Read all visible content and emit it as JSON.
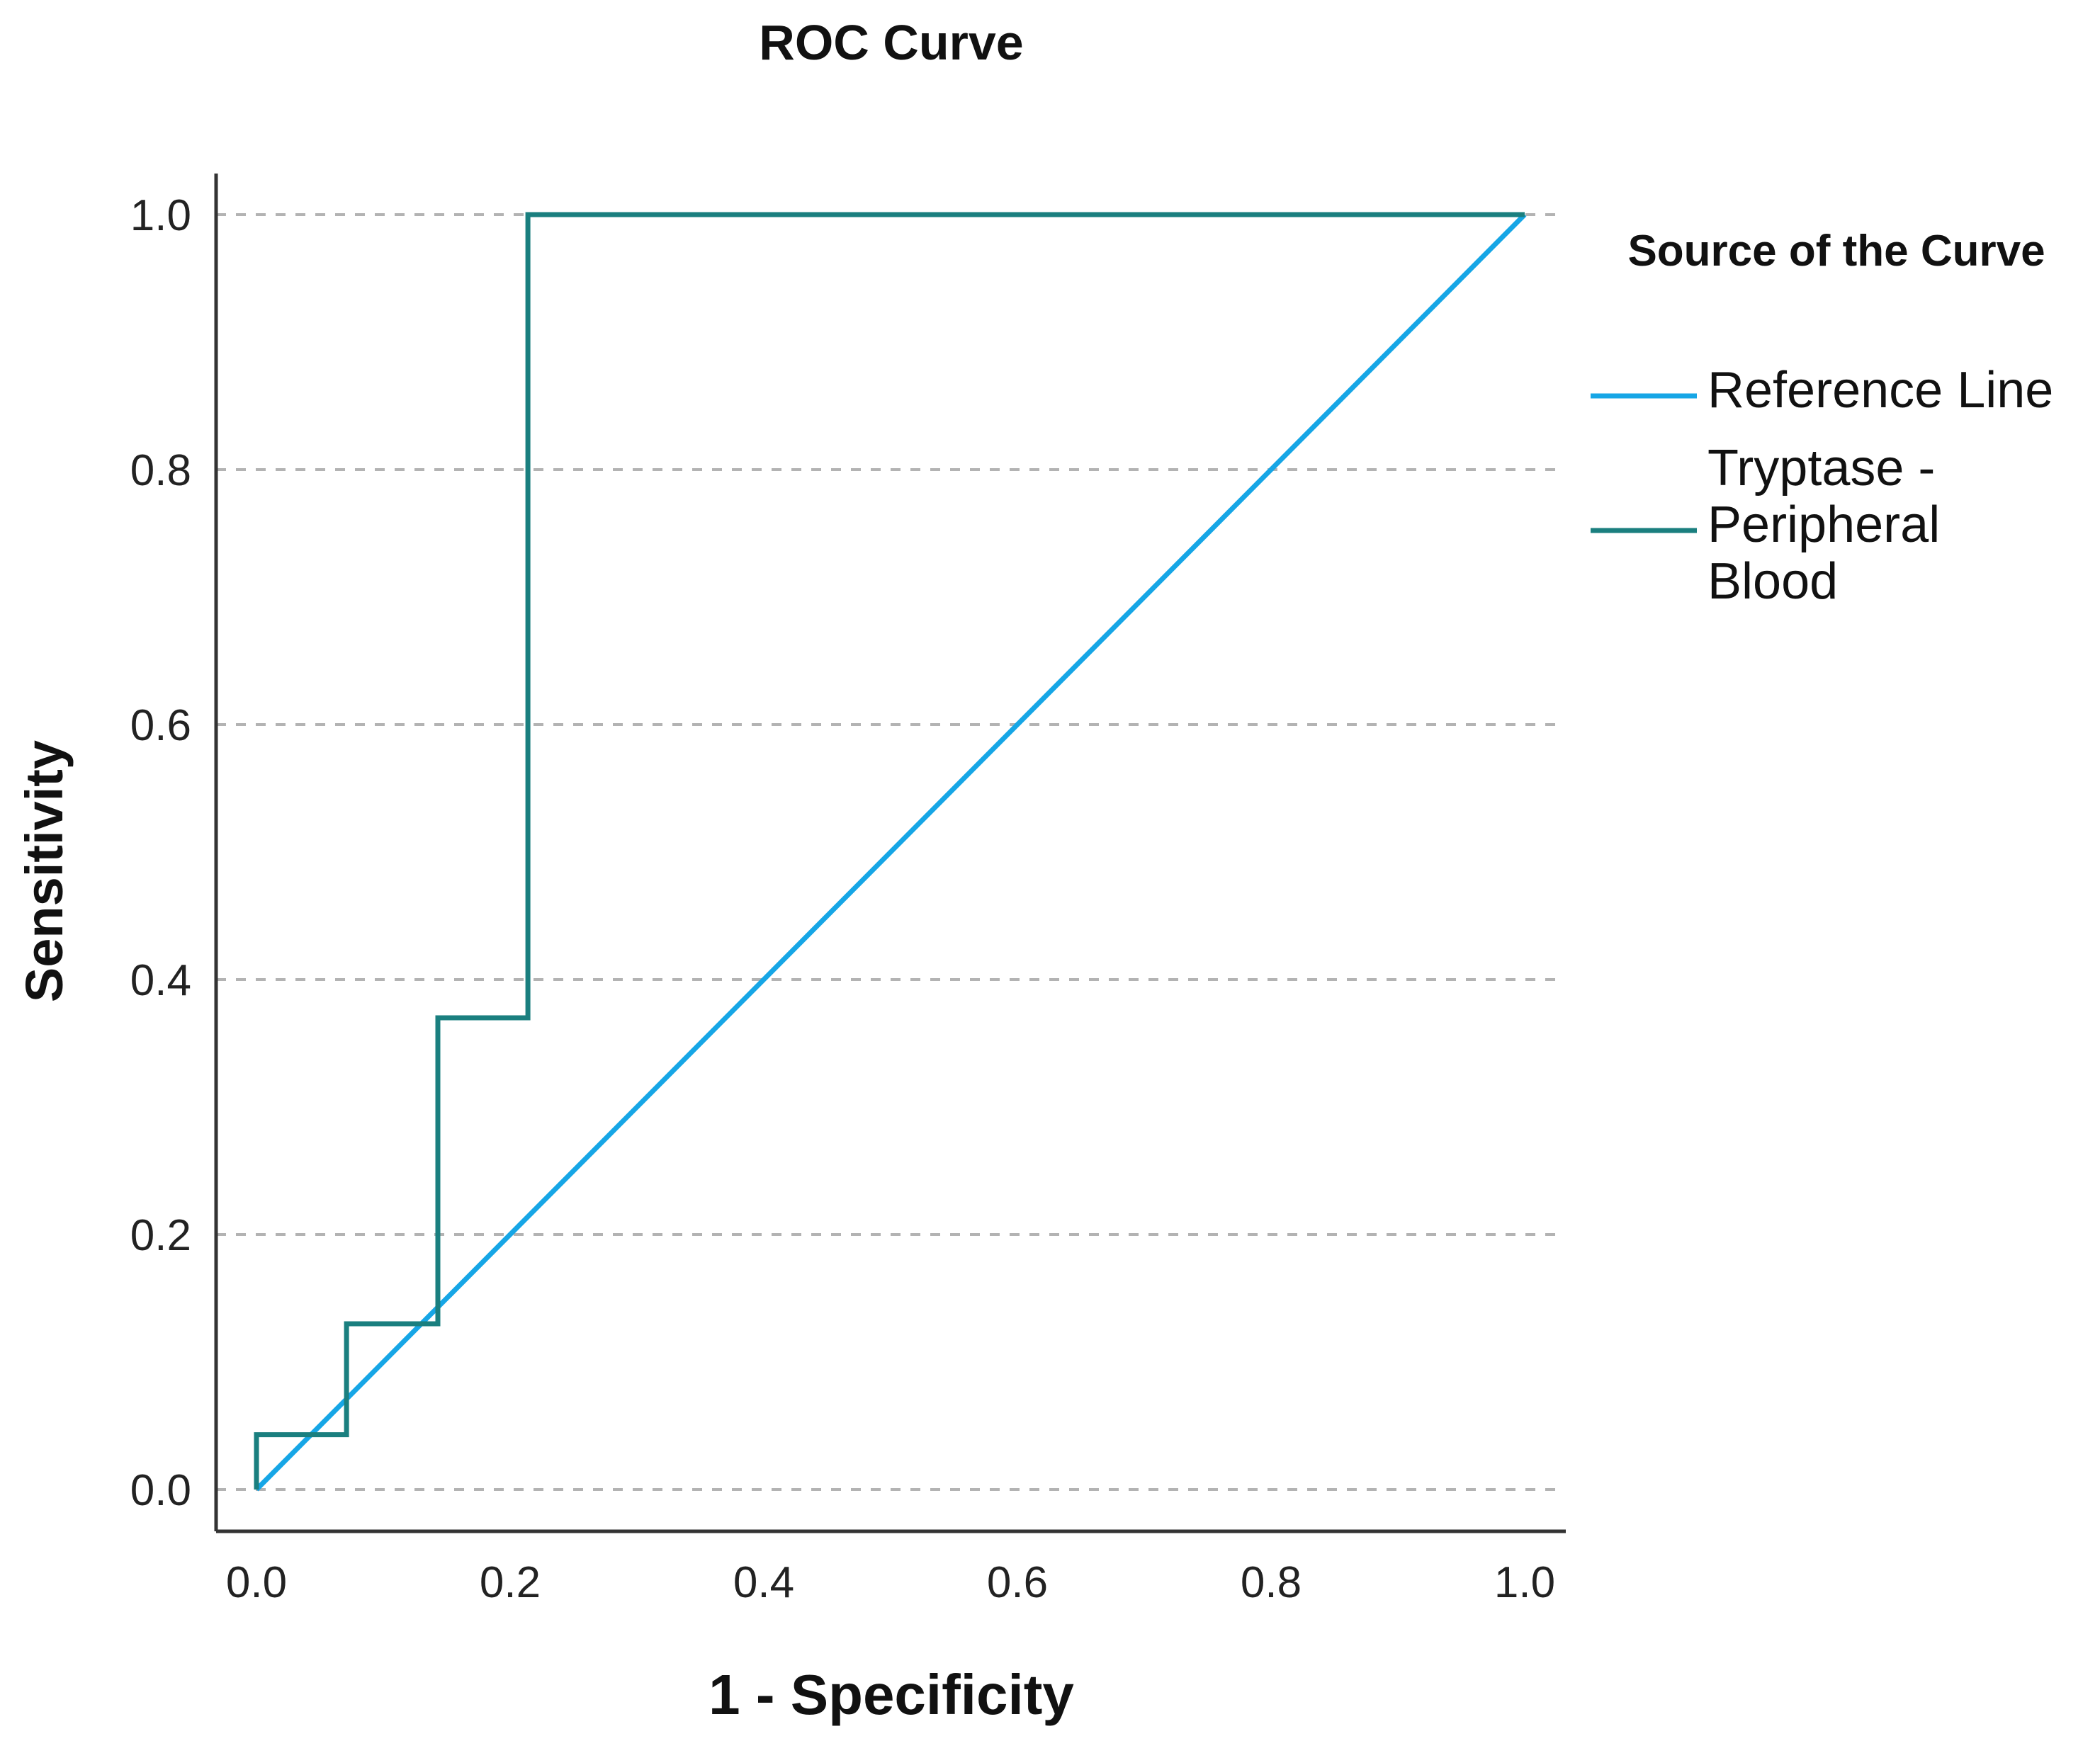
{
  "chart_data": {
    "type": "line",
    "title": "ROC Curve",
    "xlabel": "1 - Specificity",
    "ylabel": "Sensitivity",
    "xlim": [
      0.0,
      1.0
    ],
    "ylim": [
      0.0,
      1.0
    ],
    "xticks": [
      "0.0",
      "0.2",
      "0.4",
      "0.6",
      "0.8",
      "1.0"
    ],
    "yticks": [
      "0.0",
      "0.2",
      "0.4",
      "0.6",
      "0.8",
      "1.0"
    ],
    "grid": "horizontal-dashed",
    "legend": {
      "title": "Source of the Curve",
      "placement": "top-right outside"
    },
    "series": [
      {
        "name": "Reference Line",
        "color": "#16a6e6",
        "x": [
          0.0,
          1.0
        ],
        "y": [
          0.0,
          1.0
        ]
      },
      {
        "name": "Tryptase - Peripheral Blood",
        "legend_lines": [
          "Tryptase -",
          "Peripheral",
          "Blood"
        ],
        "color": "#1a7f7f",
        "x": [
          0.0,
          0.0,
          0.071,
          0.071,
          0.143,
          0.143,
          0.214,
          0.214,
          1.0
        ],
        "y": [
          0.0,
          0.043,
          0.043,
          0.13,
          0.13,
          0.37,
          0.37,
          1.0,
          1.0
        ]
      }
    ]
  }
}
